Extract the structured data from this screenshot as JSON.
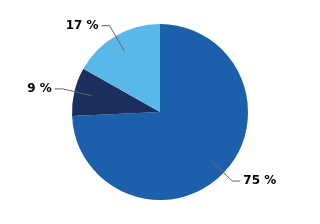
{
  "chart_data": {
    "type": "pie",
    "values": [
      75,
      9,
      17
    ],
    "value_labels": [
      "75 %",
      "9 %",
      "17 %"
    ],
    "colors": [
      "#1c5faa",
      "#1a2f5e",
      "#5ab8e8"
    ],
    "data_labels": true
  }
}
